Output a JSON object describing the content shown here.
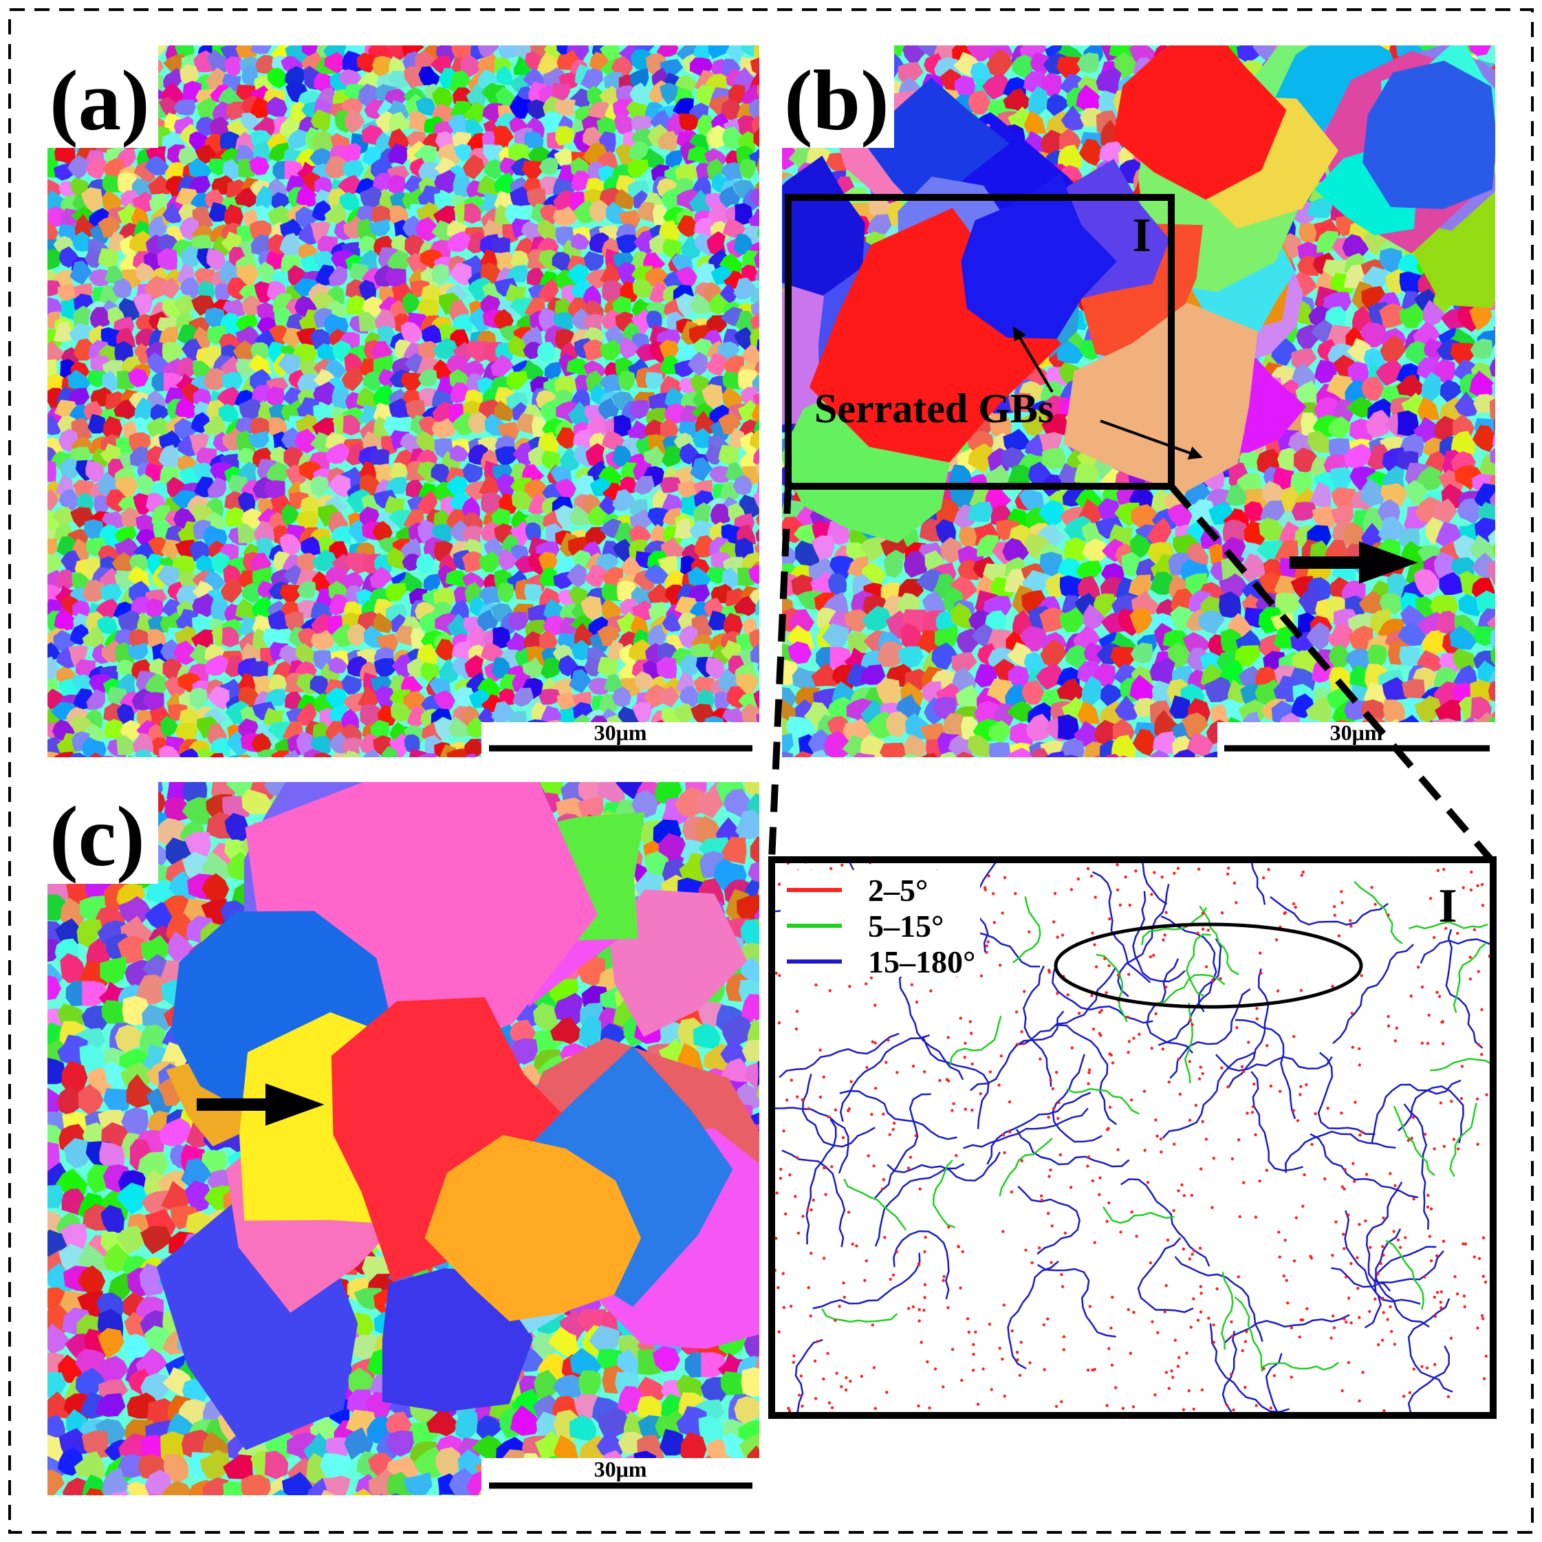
{
  "panels": [
    {
      "label": "(a)",
      "scale_bar": "30μm"
    },
    {
      "label": "(b)",
      "scale_bar": "30μm",
      "inset_label": "I",
      "annotation": "Serrated GBs"
    },
    {
      "label": "(c)",
      "scale_bar": "30μm"
    }
  ],
  "inset": {
    "label": "I",
    "legend": [
      {
        "label": "2–5°",
        "color": "#ff2020"
      },
      {
        "label": "5–15°",
        "color": "#20d020"
      },
      {
        "label": "15–180°",
        "color": "#1a1acc"
      }
    ]
  }
}
